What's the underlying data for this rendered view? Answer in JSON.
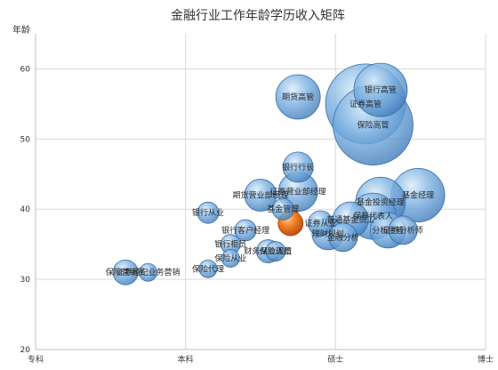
{
  "chart_data": {
    "type": "scatter",
    "title": "金融行业工作年龄学历收入矩阵",
    "ylabel": "年龄",
    "xlabel": "",
    "x_categories": [
      "专科",
      "本科",
      "硕士",
      "博士"
    ],
    "ylim": [
      20,
      65
    ],
    "yticks": [
      20,
      30,
      40,
      50,
      60
    ],
    "grid": true,
    "colors": {
      "bubble": "#5b9bd5",
      "highlight": "#e8701a"
    },
    "points": [
      {
        "label": "保险营销员",
        "x": 0.6,
        "y": 31,
        "r": 14
      },
      {
        "label": "证券经纪业务营销",
        "x": 0.75,
        "y": 31,
        "r": 10
      },
      {
        "label": "保险代理",
        "x": 1.15,
        "y": 31.5,
        "r": 10
      },
      {
        "label": "银行从业",
        "x": 1.15,
        "y": 39.5,
        "r": 12
      },
      {
        "label": "银行柜员",
        "x": 1.3,
        "y": 35,
        "r": 11
      },
      {
        "label": "保险从业",
        "x": 1.3,
        "y": 33,
        "r": 10
      },
      {
        "label": "银行客户经理",
        "x": 1.4,
        "y": 37,
        "r": 12
      },
      {
        "label": "期货营业部经理",
        "x": 1.5,
        "y": 42,
        "r": 18
      },
      {
        "label": "财务从业人员",
        "x": 1.55,
        "y": 34,
        "r": 13
      },
      {
        "label": "保险理赔",
        "x": 1.6,
        "y": 34,
        "r": 11
      },
      {
        "label": "银行行长",
        "x": 1.75,
        "y": 46,
        "r": 17
      },
      {
        "label": "证券营业部经理",
        "x": 1.75,
        "y": 42.5,
        "r": 22
      },
      {
        "label": "基金管理",
        "x": 1.65,
        "y": 40,
        "r": 12
      },
      {
        "label": "银行经理",
        "x": 1.7,
        "y": 38,
        "r": 14,
        "highlight": true
      },
      {
        "label": "期货高管",
        "x": 1.75,
        "y": 56,
        "r": 25
      },
      {
        "label": "证券从业",
        "x": 1.9,
        "y": 38,
        "r": 14
      },
      {
        "label": "普通基金员工",
        "x": 2.1,
        "y": 38.5,
        "r": 20
      },
      {
        "label": "理财规划",
        "x": 1.95,
        "y": 36.5,
        "r": 18
      },
      {
        "label": "金融分析",
        "x": 2.05,
        "y": 36,
        "r": 16
      },
      {
        "label": "银行高管",
        "x": 2.3,
        "y": 57,
        "r": 30
      },
      {
        "label": "证券高管",
        "x": 2.2,
        "y": 55,
        "r": 45
      },
      {
        "label": "保险高管",
        "x": 2.25,
        "y": 52,
        "r": 45
      },
      {
        "label": "基金投资经理",
        "x": 2.3,
        "y": 41,
        "r": 28
      },
      {
        "label": "保荐代表人",
        "x": 2.25,
        "y": 39,
        "r": 26
      },
      {
        "label": "分析主管",
        "x": 2.35,
        "y": 37,
        "r": 20
      },
      {
        "label": "基金经理",
        "x": 2.55,
        "y": 42,
        "r": 30
      },
      {
        "label": "证券分析师",
        "x": 2.45,
        "y": 37,
        "r": 16
      }
    ]
  }
}
